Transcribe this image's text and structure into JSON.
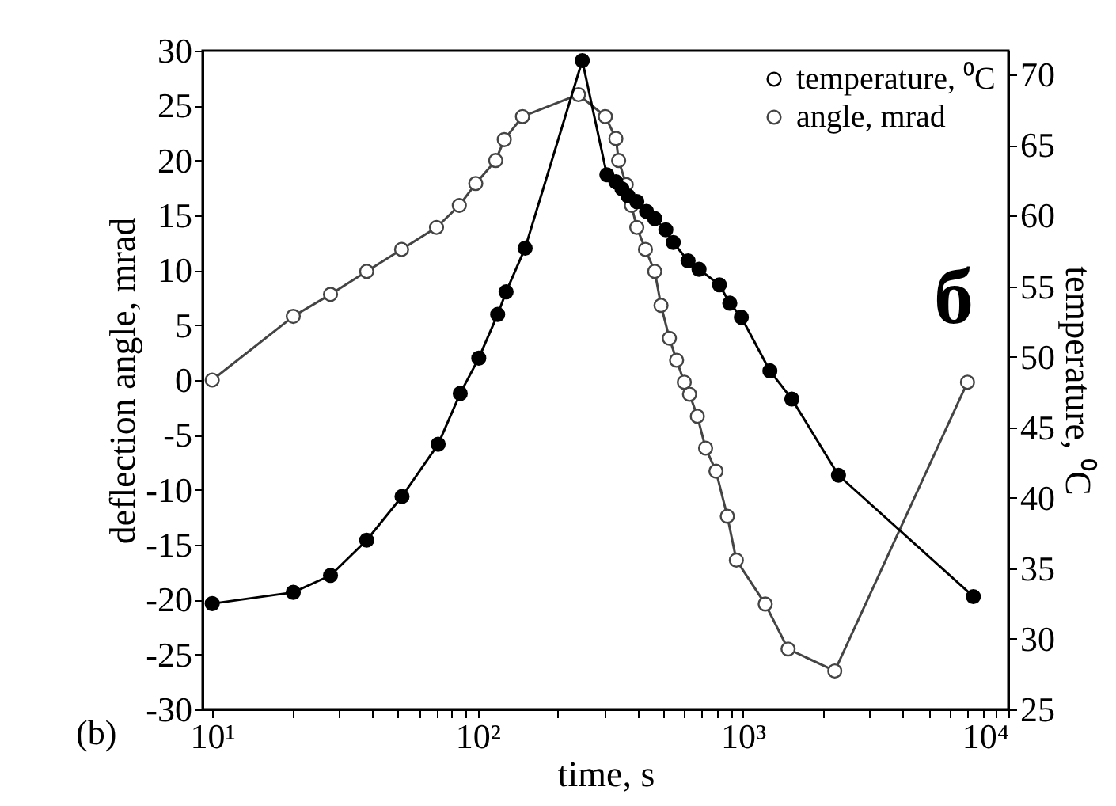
{
  "chart_data": {
    "type": "line",
    "xlabel": "time, s",
    "ylabel": "deflection angle, mrad",
    "y2label": "temperature, ⁰C",
    "annotations": [
      "(b)",
      "б"
    ],
    "log": "x",
    "grid": false,
    "legend": "top right",
    "marker": "circle",
    "line_style": "solid",
    "xlim": [
      9.2,
      10000
    ],
    "xticks": [
      {
        "value": 10,
        "label": "10¹"
      },
      {
        "value": 20,
        "label": null
      },
      {
        "value": 30,
        "label": null
      },
      {
        "value": 40,
        "label": null
      },
      {
        "value": 50,
        "label": null
      },
      {
        "value": 60,
        "label": null
      },
      {
        "value": 70,
        "label": null
      },
      {
        "value": 80,
        "label": null
      },
      {
        "value": 90,
        "label": null
      },
      {
        "value": 100,
        "label": "10²"
      },
      {
        "value": 200,
        "label": null
      },
      {
        "value": 300,
        "label": null
      },
      {
        "value": 400,
        "label": null
      },
      {
        "value": 500,
        "label": null
      },
      {
        "value": 600,
        "label": null
      },
      {
        "value": 700,
        "label": null
      },
      {
        "value": 800,
        "label": null
      },
      {
        "value": 900,
        "label": null
      },
      {
        "value": 1000,
        "label": "10³"
      },
      {
        "value": 2000,
        "label": null
      },
      {
        "value": 3000,
        "label": null
      },
      {
        "value": 4000,
        "label": null
      },
      {
        "value": 5000,
        "label": null
      },
      {
        "value": 6000,
        "label": null
      },
      {
        "value": 7000,
        "label": null
      },
      {
        "value": 8000,
        "label": null
      },
      {
        "value": 9000,
        "label": null
      },
      {
        "value": 10000,
        "label": "10⁴"
      }
    ],
    "ylim": [
      -30,
      30
    ],
    "yticks": [
      -30,
      -25,
      -20,
      -15,
      -10,
      -5,
      0,
      5,
      10,
      15,
      20,
      25,
      30
    ],
    "y2lim": [
      25,
      71.7
    ],
    "y2ticks": [
      25,
      30,
      35,
      40,
      45,
      50,
      55,
      60,
      65,
      70
    ],
    "series": [
      {
        "name": "temperature, ⁰C",
        "color": "#000000",
        "axis": "y2",
        "x": [
          10,
          20.2,
          27.9,
          38.2,
          51.9,
          71,
          86,
          101,
          119,
          128,
          151,
          248,
          307,
          332,
          350,
          369,
          398,
          433,
          465,
          512,
          546,
          621,
          683,
          815,
          892,
          986,
          1263,
          1528,
          2290,
          7379
        ],
        "values": [
          32.5,
          33.3,
          34.5,
          37.0,
          40.1,
          43.8,
          47.4,
          49.9,
          53.0,
          54.6,
          57.7,
          71.0,
          62.9,
          62.4,
          61.9,
          61.4,
          61.0,
          60.3,
          59.8,
          59.0,
          58.1,
          56.8,
          56.2,
          55.1,
          53.8,
          52.8,
          49.0,
          47.0,
          41.6,
          33.0
        ]
      },
      {
        "name": "angle, mrad",
        "color": "#444444",
        "axis": "y",
        "x": [
          10,
          20.2,
          27.9,
          38.2,
          51.7,
          70,
          85.3,
          98.4,
          117,
          126,
          147.6,
          240,
          303,
          332,
          340,
          363,
          380,
          398,
          429,
          465,
          491,
          528,
          562,
          601,
          629,
          673,
          723,
          791,
          873,
          944,
          1213,
          1479,
          2218,
          7013
        ],
        "values": [
          0,
          5.8,
          7.8,
          9.9,
          11.9,
          13.9,
          15.9,
          17.9,
          20.0,
          21.9,
          24.0,
          26.0,
          24.0,
          22.0,
          20.0,
          17.8,
          15.9,
          13.9,
          11.9,
          9.9,
          6.8,
          3.8,
          1.8,
          -0.2,
          -1.3,
          -3.3,
          -6.2,
          -8.3,
          -12.4,
          -16.4,
          -20.4,
          -24.5,
          -26.5,
          -0.2
        ]
      }
    ]
  }
}
